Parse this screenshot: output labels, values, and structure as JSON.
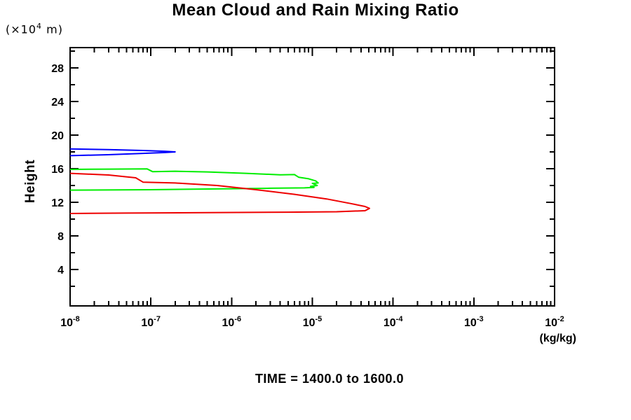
{
  "footer": {
    "time_label": "TIME = 1400.0 to 1600.0"
  },
  "chart_data": {
    "type": "line",
    "title": "Mean Cloud and Rain Mixing Ratio",
    "ylabel": "Height",
    "ylabel_units_prefix": "(×10",
    "ylabel_units_exp": "4",
    "ylabel_units_suffix": " m)",
    "xlabel_units": "(kg/kg)",
    "xscale": "log",
    "xlim": [
      1e-08,
      0.01
    ],
    "ylim": [
      -0.33,
      30.42
    ],
    "x_decade_exponents": [
      -8,
      -7,
      -6,
      -5,
      -4,
      -3,
      -2
    ],
    "x_tick_label_base": "10",
    "y_major_ticks": [
      4,
      8,
      12,
      16,
      20,
      24,
      28
    ],
    "y_minor_ticks": [
      2,
      6,
      10,
      14,
      18,
      22,
      26,
      30
    ],
    "grid": false,
    "legend": "none",
    "frame_color": "#000000",
    "series": [
      {
        "name": "series-blue",
        "color": "#0000ff",
        "points": [
          [
            1e-08,
            18.35
          ],
          [
            3e-08,
            18.27
          ],
          [
            8e-08,
            18.17
          ],
          [
            1.5e-07,
            18.08
          ],
          [
            2e-07,
            18.0
          ],
          [
            1.5e-07,
            17.93
          ],
          [
            8e-08,
            17.83
          ],
          [
            3e-08,
            17.67
          ],
          [
            1e-08,
            17.55
          ]
        ]
      },
      {
        "name": "series-green",
        "color": "#00ee00",
        "points": [
          [
            1e-08,
            15.92
          ],
          [
            3e-08,
            15.95
          ],
          [
            9e-08,
            15.98
          ],
          [
            1.05e-07,
            15.65
          ],
          [
            2e-07,
            15.7
          ],
          [
            5e-07,
            15.62
          ],
          [
            1.5e-06,
            15.45
          ],
          [
            4e-06,
            15.28
          ],
          [
            6e-06,
            15.3
          ],
          [
            6.8e-06,
            14.98
          ],
          [
            9e-06,
            14.8
          ],
          [
            1.1e-05,
            14.55
          ],
          [
            1.18e-05,
            14.3
          ],
          [
            1e-05,
            14.25
          ],
          [
            1.15e-05,
            14.0
          ],
          [
            9.5e-06,
            13.9
          ],
          [
            1.05e-05,
            13.78
          ],
          [
            8e-06,
            13.72
          ],
          [
            3e-06,
            13.68
          ],
          [
            1e-06,
            13.62
          ],
          [
            1e-07,
            13.5
          ],
          [
            1e-08,
            13.45
          ]
        ]
      },
      {
        "name": "series-red",
        "color": "#ee0000",
        "points": [
          [
            1e-08,
            15.45
          ],
          [
            3e-08,
            15.25
          ],
          [
            6.5e-08,
            14.92
          ],
          [
            8e-08,
            14.4
          ],
          [
            2e-07,
            14.3
          ],
          [
            6.6e-07,
            14.0
          ],
          [
            2e-06,
            13.5
          ],
          [
            6e-06,
            12.95
          ],
          [
            1.5e-05,
            12.4
          ],
          [
            3e-05,
            11.85
          ],
          [
            4.5e-05,
            11.5
          ],
          [
            5.1e-05,
            11.28
          ],
          [
            4.5e-05,
            11.0
          ],
          [
            2e-05,
            10.88
          ],
          [
            5e-06,
            10.83
          ],
          [
            5e-07,
            10.78
          ],
          [
            5e-08,
            10.72
          ],
          [
            1e-08,
            10.67
          ]
        ]
      }
    ]
  }
}
